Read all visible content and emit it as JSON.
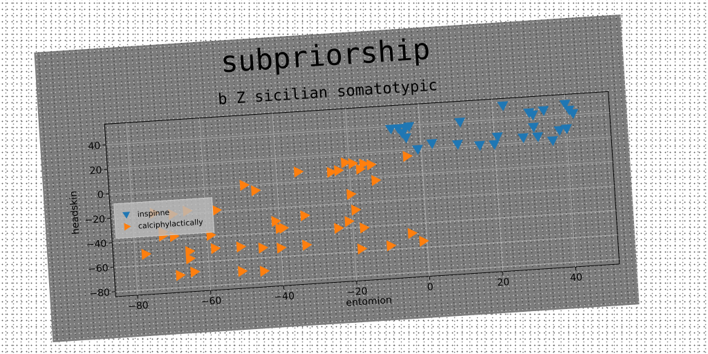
{
  "chart_data": {
    "type": "scatter",
    "title": "subpriorship",
    "subtitle": "b Z sicilian somatotypic",
    "xlabel": "entomion",
    "ylabel": "headskin",
    "xlim": [
      -86,
      52
    ],
    "ylim": [
      -84,
      57
    ],
    "xticks": [
      -80,
      -60,
      -40,
      -20,
      0,
      20,
      40
    ],
    "yticks": [
      -80,
      -60,
      -40,
      -20,
      0,
      20,
      40
    ],
    "grid": true,
    "legend_position": "center-left",
    "series": [
      {
        "name": "inspinne",
        "marker": "triangle-down",
        "color": "#1f77b4",
        "x": [
          23,
          40,
          41,
          42,
          30,
          34,
          31,
          -8,
          -6,
          -4,
          -3,
          -5,
          -4,
          11,
          31,
          38,
          40,
          3,
          -1,
          10,
          16,
          21,
          28,
          32,
          36,
          20
        ],
        "y": [
          51,
          49,
          44,
          41,
          44,
          45,
          42,
          38,
          38,
          38,
          39,
          34,
          30,
          40,
          32,
          28,
          29,
          24,
          20,
          22,
          20,
          26,
          24,
          24,
          20,
          20
        ]
      },
      {
        "name": "calciphylactically",
        "marker": "triangle-right",
        "color": "#ff7f0e",
        "x": [
          -21,
          -19,
          -16,
          -14,
          -17,
          -25,
          -23,
          -34,
          -4,
          -49,
          -46,
          -13,
          -20,
          -19,
          -21,
          -33,
          -41,
          -39,
          -57,
          -65,
          -69,
          -74,
          -72,
          -72,
          -59,
          -69,
          -40,
          -17,
          -24,
          -65,
          -77,
          -65,
          -58,
          -51,
          -45,
          -40,
          -33,
          -18,
          -10,
          -4,
          -1,
          -68,
          -64,
          -51,
          -45
        ],
        "y": [
          13,
          12,
          11,
          10,
          7,
          6,
          7,
          8,
          15,
          0,
          -5,
          -3,
          -13,
          -26,
          -35,
          -28,
          -31,
          -37,
          -19,
          -18,
          -20,
          -18,
          -34,
          -37,
          -39,
          -38,
          -37,
          -41,
          -40,
          -51,
          -51,
          -57,
          -50,
          -50,
          -52,
          -53,
          -52,
          -58,
          -57,
          -48,
          -55,
          -70,
          -68,
          -70,
          -71
        ]
      }
    ]
  }
}
